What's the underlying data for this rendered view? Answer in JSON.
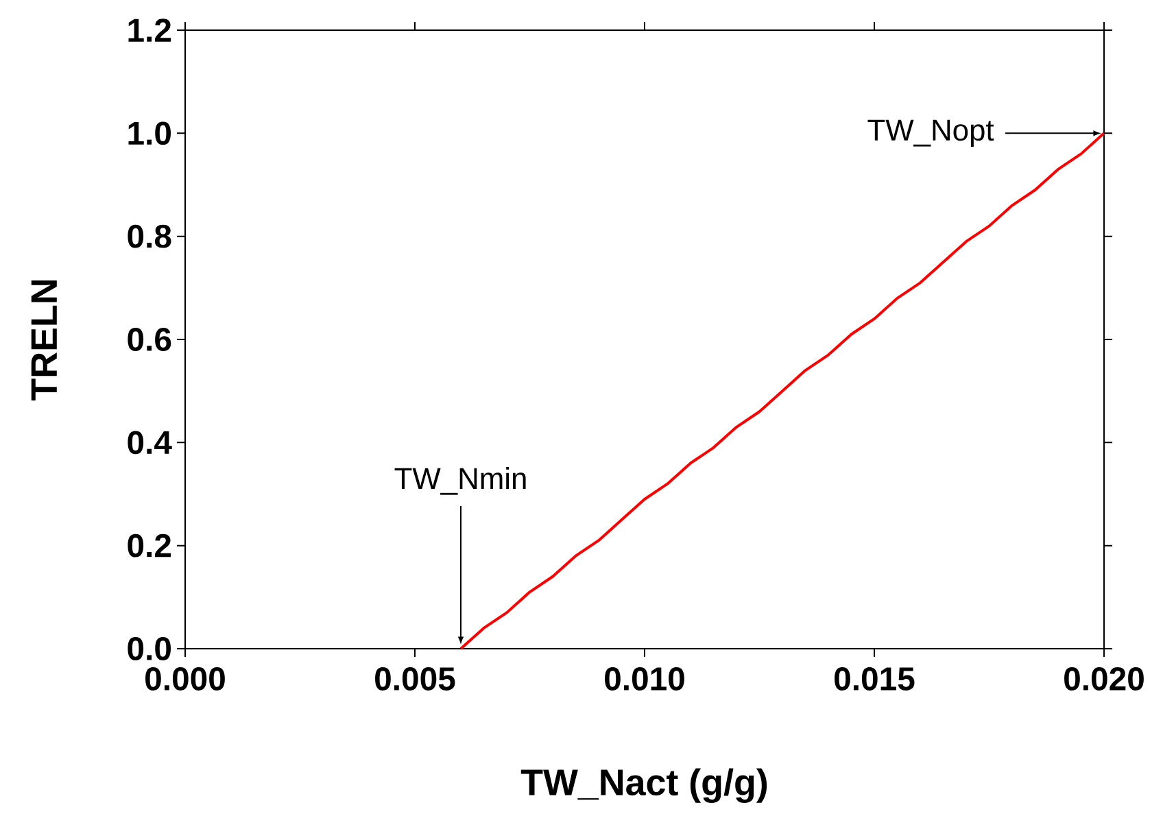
{
  "chart_data": {
    "type": "line",
    "xlabel": "TW_Nact (g/g)",
    "ylabel": "TRELN",
    "x": [
      0.006,
      0.0065,
      0.007,
      0.0075,
      0.008,
      0.0085,
      0.009,
      0.0095,
      0.01,
      0.0105,
      0.011,
      0.0115,
      0.012,
      0.0125,
      0.013,
      0.0135,
      0.014,
      0.0145,
      0.015,
      0.0155,
      0.016,
      0.0165,
      0.017,
      0.0175,
      0.018,
      0.0185,
      0.019,
      0.0195,
      0.02
    ],
    "series": [
      {
        "color": "#ff0000",
        "values": [
          0,
          0.04,
          0.07,
          0.11,
          0.14,
          0.18,
          0.21,
          0.25,
          0.29,
          0.32,
          0.36,
          0.39,
          0.43,
          0.46,
          0.5,
          0.54,
          0.57,
          0.61,
          0.64,
          0.68,
          0.71,
          0.75,
          0.79,
          0.82,
          0.86,
          0.89,
          0.93,
          0.96,
          1.0
        ]
      }
    ],
    "xlim": [
      0,
      0.02
    ],
    "ylim": [
      0,
      1.2
    ],
    "xticks": [
      {
        "value": 0,
        "label": "0.000"
      },
      {
        "value": 0.005,
        "label": "0.005"
      },
      {
        "value": 0.01,
        "label": "0.010"
      },
      {
        "value": 0.015,
        "label": "0.015"
      },
      {
        "value": 0.02,
        "label": "0.020"
      }
    ],
    "yticks": [
      {
        "value": 0,
        "label": "0.0"
      },
      {
        "value": 0.2,
        "label": "0.2"
      },
      {
        "value": 0.4,
        "label": "0.4"
      },
      {
        "value": 0.6,
        "label": "0.6"
      },
      {
        "value": 0.8,
        "label": "0.8"
      },
      {
        "value": 1.0,
        "label": "1.0"
      },
      {
        "value": 1.2,
        "label": "1.2"
      }
    ],
    "annotations": [
      {
        "text": "TW_Nmin",
        "x": 0.006,
        "y": 0
      },
      {
        "text": "TW_Nopt",
        "x": 0.02,
        "y": 1.0
      }
    ],
    "grid": false,
    "marker": "none",
    "line_style": "solid"
  }
}
